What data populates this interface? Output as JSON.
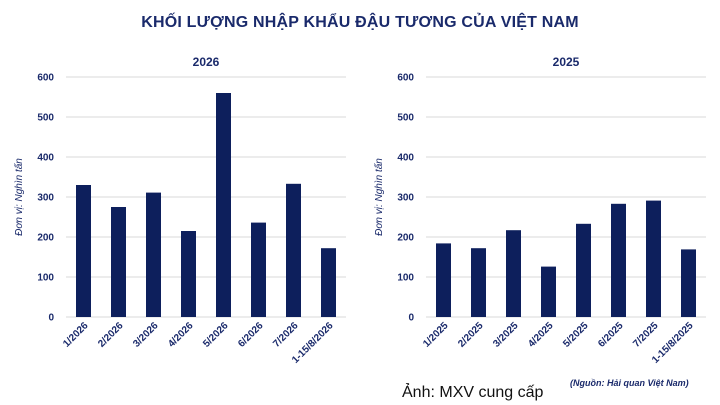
{
  "title": "KHỐI LƯỢNG NHẬP KHẨU ĐẬU TƯƠNG CỦA VIỆT NAM",
  "caption": "Ảnh: MXV cung cấp",
  "source": "(Nguồn: Hải quan Việt Nam)",
  "colors": {
    "bar": "#0d1f5c",
    "grid": "#d9d9d9",
    "text": "#1a2a6b"
  },
  "chart_data": [
    {
      "type": "bar",
      "title": "2026",
      "ylabel": "Đơn vị: Nghìn tấn",
      "ylim": [
        0,
        600
      ],
      "yticks": [
        "0",
        "100",
        "200",
        "300",
        "400",
        "500",
        "600"
      ],
      "grid": true,
      "categories": [
        "1/2026",
        "2/2026",
        "3/2026",
        "4/2026",
        "5/2026",
        "6/2026",
        "7/2026",
        "1-15/8/2026"
      ],
      "values": [
        330,
        275,
        311,
        215,
        560,
        236,
        333,
        172
      ]
    },
    {
      "type": "bar",
      "title": "2025",
      "ylabel": "Đơn vị: Nghìn tấn",
      "ylim": [
        0,
        600
      ],
      "yticks": [
        "0",
        "100",
        "200",
        "300",
        "400",
        "500",
        "600"
      ],
      "grid": true,
      "categories": [
        "1/2025",
        "2/2025",
        "3/2025",
        "4/2025",
        "5/2025",
        "6/2025",
        "7/2025",
        "1-15/8/2025"
      ],
      "values": [
        184,
        172,
        217,
        126,
        233,
        283,
        291,
        169
      ]
    }
  ]
}
